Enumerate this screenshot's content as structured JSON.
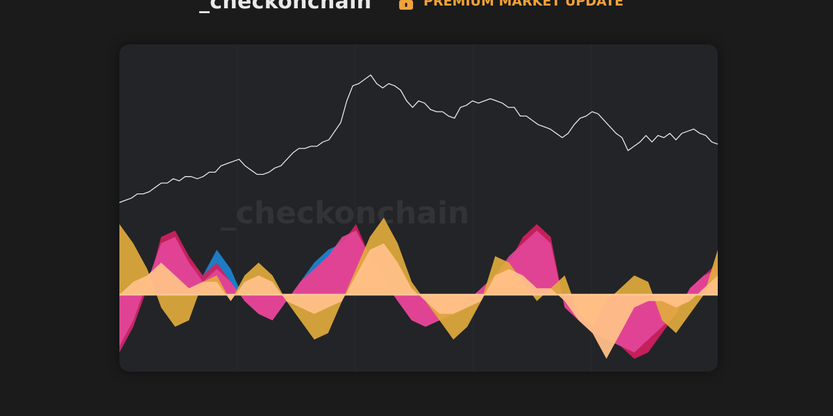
{
  "header": {
    "brand": "_checkonchain",
    "badge_label": "PREMIUM MARKET UPDATE",
    "badge_icon": "lock-icon"
  },
  "watermark": "_checkonchain",
  "colors": {
    "background": "#1b1b1b",
    "card": "#232427",
    "price_line": "#ececec",
    "zero_line": "#ffc896",
    "accent": "#f2a23a",
    "blue": "#1c86d3",
    "crimson": "#d3215f",
    "pink": "#e24598",
    "gold": "#e1ab3c",
    "peach": "#ffc088"
  },
  "chart_data": {
    "type": "area",
    "title": "",
    "xlabel": "",
    "ylabel": "",
    "grid": true,
    "legend": "none",
    "price": {
      "ylim": [
        0,
        100
      ],
      "x": [
        0,
        3,
        6,
        9,
        12,
        15,
        18,
        21,
        24,
        27,
        30,
        33,
        36,
        39,
        42,
        45,
        48,
        51,
        54,
        57,
        60,
        63,
        66,
        69,
        72,
        75,
        78,
        81,
        84,
        87,
        90,
        93,
        96,
        99,
        102,
        105,
        108,
        111,
        114,
        117,
        120,
        123,
        126,
        129,
        132,
        135,
        138,
        141,
        144,
        147,
        150,
        153,
        156,
        159,
        162,
        165,
        168,
        171,
        174,
        177,
        180,
        183,
        186,
        189,
        192,
        195,
        198,
        201,
        204,
        207,
        210,
        213,
        216,
        219,
        222,
        225,
        228,
        231,
        234,
        237,
        240,
        243,
        246,
        249,
        252,
        255,
        258,
        261,
        264,
        267,
        270,
        273,
        276,
        279,
        282,
        285,
        288,
        291,
        294,
        297,
        300
      ],
      "values": [
        8,
        9,
        10,
        12,
        12,
        13,
        15,
        17,
        17,
        19,
        18,
        20,
        20,
        19,
        20,
        22,
        22,
        25,
        26,
        27,
        28,
        25,
        23,
        21,
        21,
        22,
        24,
        25,
        28,
        31,
        33,
        33,
        34,
        34,
        36,
        37,
        41,
        45,
        55,
        62,
        63,
        65,
        67,
        63,
        61,
        63,
        62,
        60,
        55,
        52,
        55,
        54,
        51,
        50,
        50,
        48,
        47,
        52,
        53,
        55,
        54,
        55,
        56,
        55,
        54,
        52,
        52,
        48,
        48,
        46,
        44,
        43,
        42,
        40,
        38,
        40,
        44,
        47,
        48,
        50,
        49,
        46,
        43,
        40,
        38,
        32,
        34,
        36,
        39,
        36,
        39,
        38,
        40,
        37,
        40,
        41,
        42,
        40,
        39,
        36,
        35
      ]
    },
    "oscillator": {
      "ylim": [
        -12,
        12
      ],
      "series": [
        {
          "color": "blue",
          "values": [
            -9,
            -5,
            2,
            8,
            9,
            5,
            3,
            7,
            4,
            -1,
            -3,
            -4,
            -1,
            2,
            5,
            7,
            8,
            10,
            6,
            3,
            -1,
            -4,
            -5,
            -4,
            -3,
            -1,
            1,
            3,
            5,
            8,
            9,
            8,
            -2,
            -4,
            -6,
            -7,
            -8,
            -9,
            -7,
            -5,
            -3,
            1,
            3,
            4
          ]
        },
        {
          "color": "crimson",
          "values": [
            -9,
            -5,
            1,
            9,
            10,
            6,
            3,
            5,
            2,
            -1,
            -3,
            -4,
            -1,
            2,
            4,
            6,
            8,
            11,
            6,
            3,
            -1,
            -4,
            -5,
            -4,
            -3,
            -1,
            1,
            3,
            5,
            9,
            11,
            9,
            -2,
            -4,
            -6,
            -7,
            -8,
            -10,
            -9,
            -6,
            -3,
            1,
            3,
            5
          ]
        },
        {
          "color": "pink",
          "values": [
            -8,
            -4,
            2,
            8,
            9,
            5,
            2,
            4,
            2,
            -1,
            -3,
            -4,
            -1,
            2,
            4,
            6,
            9,
            10,
            6,
            2,
            -1,
            -4,
            -5,
            -4,
            -3,
            -1,
            1,
            3,
            6,
            8,
            10,
            8,
            -2,
            -4,
            -6,
            -7,
            -8,
            -9,
            -7,
            -5,
            -3,
            1,
            3,
            4
          ]
        },
        {
          "color": "gold",
          "values": [
            11,
            8,
            4,
            -2,
            -5,
            -4,
            2,
            3,
            -1,
            3,
            5,
            3,
            -1,
            -4,
            -7,
            -6,
            -1,
            4,
            9,
            12,
            8,
            2,
            -1,
            -4,
            -7,
            -5,
            -1,
            6,
            5,
            2,
            -1,
            1,
            3,
            -3,
            -5,
            -1,
            1,
            3,
            2,
            -4,
            -6,
            -3,
            0,
            7
          ]
        },
        {
          "color": "peach",
          "values": [
            0,
            2,
            3,
            5,
            3,
            1,
            2,
            2,
            -1,
            2,
            3,
            2,
            -1,
            -2,
            -3,
            -2,
            -1,
            3,
            7,
            8,
            5,
            1,
            -1,
            -3,
            -3,
            -2,
            -1,
            3,
            4,
            3,
            1,
            1,
            -1,
            -4,
            -6,
            -10,
            -6,
            -2,
            -1,
            -1,
            -2,
            -1,
            1,
            3
          ]
        }
      ]
    }
  }
}
